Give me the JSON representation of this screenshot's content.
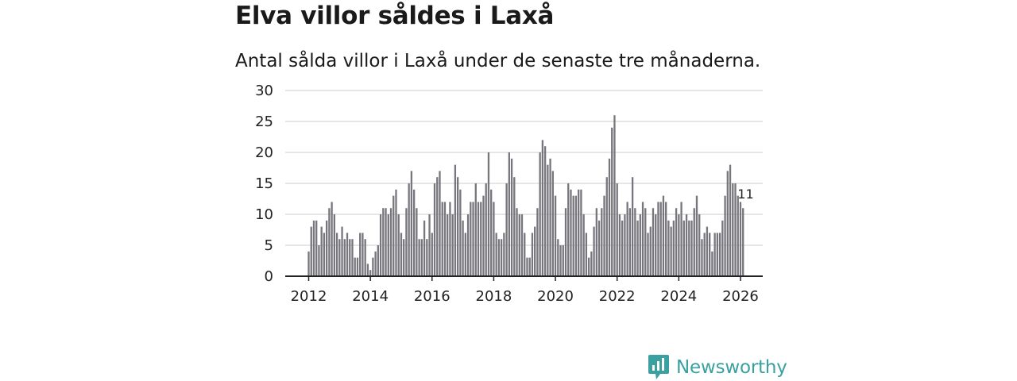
{
  "title": "Elva villor såldes i Laxå",
  "subtitle": "Antal sålda villor i Laxå under de senaste tre månaderna.",
  "brand": {
    "name": "Newsworthy",
    "icon": "newsworthy-logo-icon"
  },
  "colors": {
    "bar": "#77767d",
    "highlight": "#22a39c",
    "axis": "#222222",
    "grid": "#dddddd",
    "brand": "#3aa0a0"
  },
  "chart_data": {
    "type": "bar",
    "title": "Antal sålda villor i Laxå under de senaste tre månaderna.",
    "xlabel": "",
    "ylabel": "",
    "ylim": [
      0,
      30
    ],
    "yticks": [
      0,
      5,
      10,
      15,
      20,
      25,
      30
    ],
    "xticks": [
      "2012",
      "2014",
      "2016",
      "2018",
      "2020",
      "2022",
      "2024",
      "2026"
    ],
    "x_start": "2012-01",
    "period": "month",
    "values": [
      4,
      8,
      9,
      9,
      5,
      8,
      7,
      9,
      11,
      12,
      10,
      7,
      6,
      8,
      6,
      7,
      6,
      6,
      3,
      3,
      7,
      7,
      6,
      2,
      1,
      3,
      4,
      5,
      10,
      11,
      11,
      10,
      11,
      13,
      14,
      10,
      7,
      6,
      11,
      15,
      17,
      14,
      11,
      6,
      6,
      9,
      6,
      10,
      7,
      15,
      16,
      17,
      12,
      12,
      10,
      12,
      10,
      18,
      16,
      14,
      9,
      7,
      10,
      12,
      12,
      15,
      12,
      12,
      13,
      15,
      20,
      14,
      12,
      7,
      6,
      6,
      7,
      15,
      20,
      19,
      16,
      11,
      10,
      10,
      7,
      3,
      3,
      7,
      8,
      11,
      20,
      22,
      21,
      18,
      19,
      17,
      13,
      6,
      5,
      5,
      11,
      15,
      14,
      13,
      13,
      14,
      14,
      10,
      7,
      3,
      4,
      8,
      11,
      9,
      11,
      13,
      16,
      19,
      24,
      26,
      15,
      10,
      9,
      10,
      12,
      11,
      16,
      11,
      9,
      10,
      12,
      11,
      7,
      8,
      11,
      10,
      12,
      12,
      13,
      12,
      9,
      8,
      9,
      11,
      10,
      12,
      9,
      10,
      9,
      9,
      11,
      13,
      10,
      6,
      7,
      8,
      7,
      4,
      7,
      7,
      7,
      9,
      13,
      17,
      18,
      15,
      15,
      13,
      12,
      11
    ],
    "highlight": {
      "index": 170,
      "value": 11,
      "label": "11"
    }
  }
}
